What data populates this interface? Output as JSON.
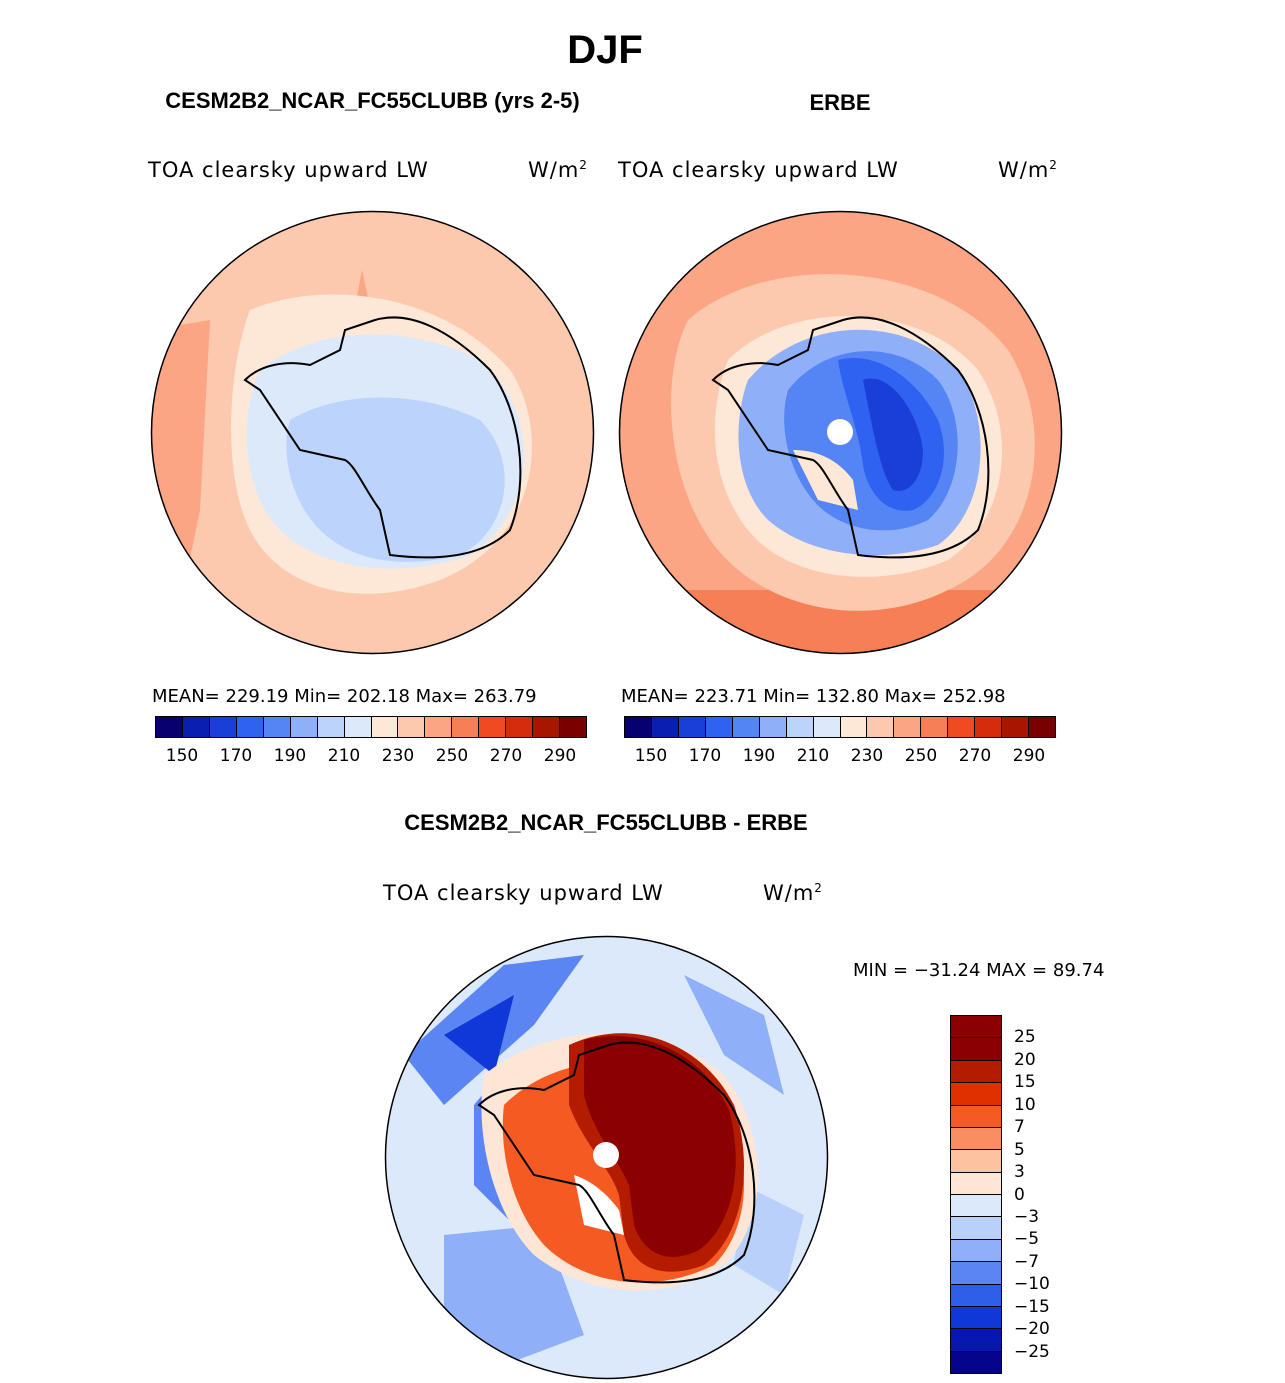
{
  "season": "DJF",
  "variable_label": "TOA clearsky upward LW",
  "units_base": "W/m",
  "units_exp": "2",
  "panels": {
    "model": {
      "title": "CESM2B2_NCAR_FC55CLUBB (yrs 2-5)",
      "stats": "MEAN= 229.19   Min= 202.18   Max= 263.79"
    },
    "obs": {
      "title": "ERBE",
      "stats": "MEAN= 223.71   Min= 132.80   Max= 252.98"
    },
    "diff": {
      "title": "CESM2B2_NCAR_FC55CLUBB - ERBE",
      "stats": "MIN = −31.24 MAX =  89.74"
    }
  },
  "abs_colorbar": {
    "colors": [
      "#08006e",
      "#0a1eb0",
      "#1a3fd8",
      "#2f62f0",
      "#5585f5",
      "#8fb0f8",
      "#bcd3fb",
      "#dce9fb",
      "#fde7d6",
      "#fcc9ae",
      "#fba584",
      "#f77f55",
      "#ef4b22",
      "#d42c0c",
      "#a81500",
      "#7a0000"
    ],
    "tick_labels": [
      "150",
      "170",
      "190",
      "210",
      "230",
      "250",
      "270",
      "290"
    ]
  },
  "diff_colorbar": {
    "colors": [
      "#8b0000",
      "#b41c00",
      "#e03000",
      "#f45a22",
      "#fa8e63",
      "#fcc3a0",
      "#fde6d5",
      "#dce9fb",
      "#b8d0fa",
      "#8fb0f8",
      "#5a85f2",
      "#2f5fe8",
      "#1038d8",
      "#0618b0",
      "#06048a"
    ],
    "tick_labels": [
      "25",
      "20",
      "15",
      "10",
      "7",
      "5",
      "3",
      "0",
      "−3",
      "−5",
      "−7",
      "−10",
      "−15",
      "−20",
      "−25"
    ]
  },
  "chart_data": [
    {
      "type": "heatmap",
      "title": "CESM2B2_NCAR_FC55CLUBB (yrs 2-5)",
      "field": "TOA clearsky upward LW",
      "units": "W/m2",
      "projection": "south polar stereographic",
      "mean": 229.19,
      "min": 202.18,
      "max": 263.79,
      "levels": [
        150,
        160,
        170,
        180,
        190,
        200,
        210,
        220,
        230,
        240,
        250,
        260,
        270,
        280,
        290
      ]
    },
    {
      "type": "heatmap",
      "title": "ERBE",
      "field": "TOA clearsky upward LW",
      "units": "W/m2",
      "projection": "south polar stereographic",
      "mean": 223.71,
      "min": 132.8,
      "max": 252.98,
      "levels": [
        150,
        160,
        170,
        180,
        190,
        200,
        210,
        220,
        230,
        240,
        250,
        260,
        270,
        280,
        290
      ]
    },
    {
      "type": "heatmap",
      "title": "CESM2B2_NCAR_FC55CLUBB - ERBE",
      "field": "TOA clearsky upward LW",
      "units": "W/m2",
      "projection": "south polar stereographic",
      "min": -31.24,
      "max": 89.74,
      "levels": [
        -25,
        -20,
        -15,
        -10,
        -7,
        -5,
        -3,
        0,
        3,
        5,
        7,
        10,
        15,
        20,
        25
      ]
    }
  ]
}
